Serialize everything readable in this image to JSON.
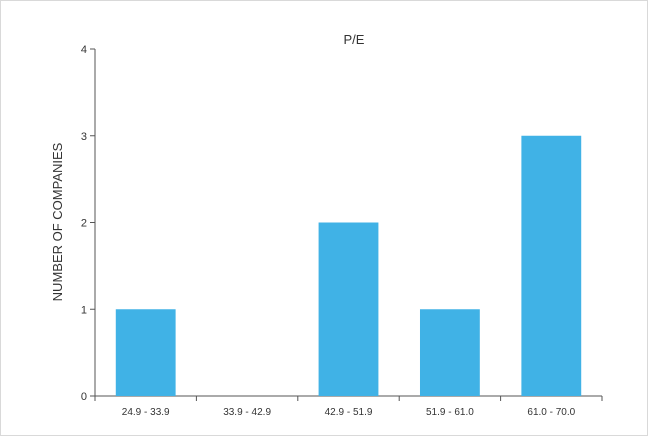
{
  "chart_data": {
    "type": "bar",
    "title": "P/E",
    "xlabel": "",
    "ylabel": "NUMBER OF COMPANIES",
    "categories": [
      "24.9 - 33.9",
      "33.9 - 42.9",
      "42.9 - 51.9",
      "51.9 - 61.0",
      "61.0 - 70.0"
    ],
    "values": [
      1,
      0,
      2,
      1,
      3
    ],
    "ylim": [
      0,
      4
    ],
    "yticks": [
      0,
      1,
      2,
      3,
      4
    ],
    "bar_color": "#40b2e6",
    "grid": false,
    "legend": "none"
  }
}
